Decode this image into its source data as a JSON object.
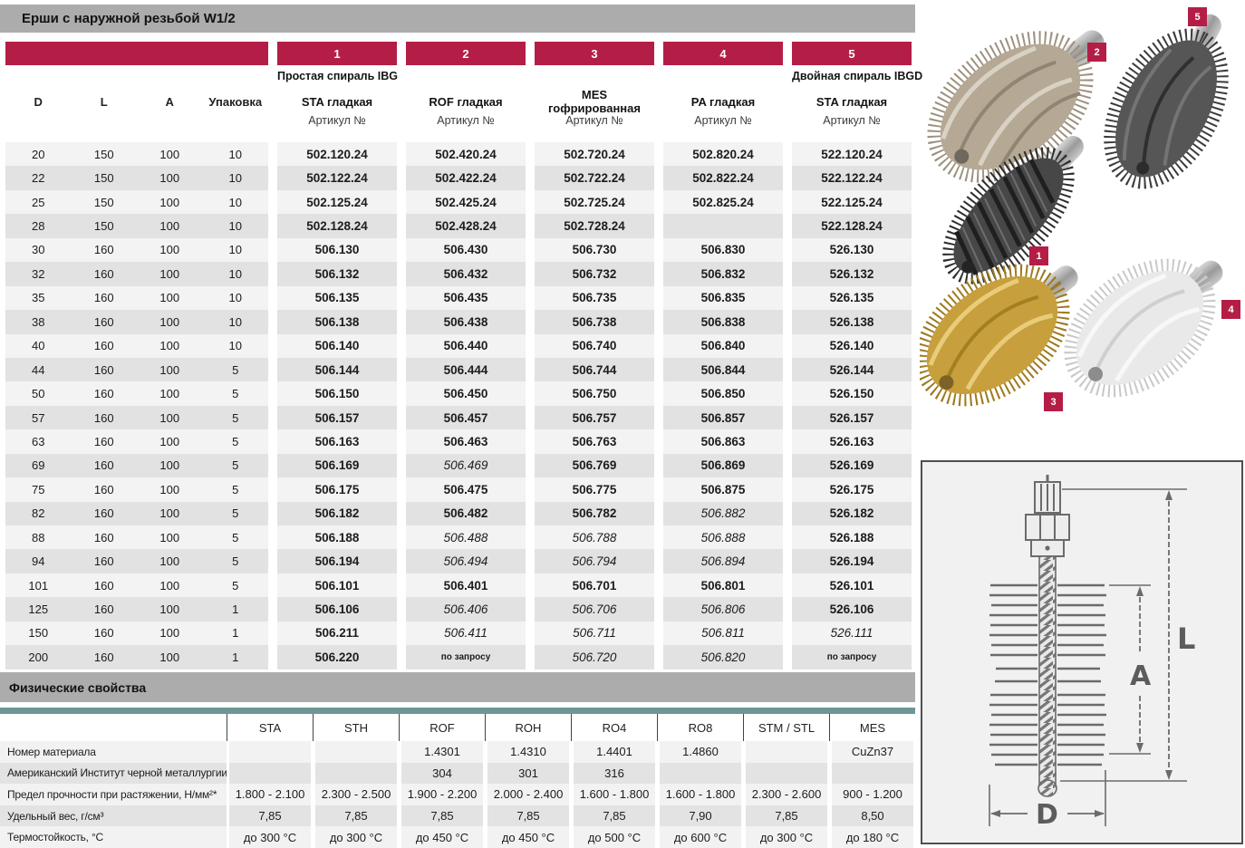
{
  "catalog": {
    "title": "Ерши с наружной резьбой  W1/2",
    "dim_headers": [
      "D",
      "L",
      "A",
      "Упаковка"
    ],
    "groups": [
      {
        "num": "1",
        "spiral": "Простая спираль IBG",
        "material": "STA гладкая",
        "article": "Артикул №"
      },
      {
        "num": "2",
        "spiral": "",
        "material": "ROF гладкая",
        "article": "Артикул №"
      },
      {
        "num": "3",
        "spiral": "",
        "material": "MES гофрированная",
        "article": "Артикул №"
      },
      {
        "num": "4",
        "spiral": "",
        "material": "PA гладкая",
        "article": "Артикул №"
      },
      {
        "num": "5",
        "spiral": "Двойная спираль IBGD",
        "material": "STA гладкая",
        "article": "Артикул №"
      }
    ],
    "rows": [
      {
        "d": "20",
        "l": "150",
        "a": "100",
        "pack": "10",
        "articles": [
          {
            "t": "502.120.24",
            "s": "b"
          },
          {
            "t": "502.420.24",
            "s": "b"
          },
          {
            "t": "502.720.24",
            "s": "b"
          },
          {
            "t": "502.820.24",
            "s": "b"
          },
          {
            "t": "522.120.24",
            "s": "b"
          }
        ]
      },
      {
        "d": "22",
        "l": "150",
        "a": "100",
        "pack": "10",
        "articles": [
          {
            "t": "502.122.24",
            "s": "b"
          },
          {
            "t": "502.422.24",
            "s": "b"
          },
          {
            "t": "502.722.24",
            "s": "b"
          },
          {
            "t": "502.822.24",
            "s": "b"
          },
          {
            "t": "522.122.24",
            "s": "b"
          }
        ]
      },
      {
        "d": "25",
        "l": "150",
        "a": "100",
        "pack": "10",
        "articles": [
          {
            "t": "502.125.24",
            "s": "b"
          },
          {
            "t": "502.425.24",
            "s": "b"
          },
          {
            "t": "502.725.24",
            "s": "b"
          },
          {
            "t": "502.825.24",
            "s": "b"
          },
          {
            "t": "522.125.24",
            "s": "b"
          }
        ]
      },
      {
        "d": "28",
        "l": "150",
        "a": "100",
        "pack": "10",
        "articles": [
          {
            "t": "502.128.24",
            "s": "b"
          },
          {
            "t": "502.428.24",
            "s": "b"
          },
          {
            "t": "502.728.24",
            "s": "b"
          },
          {
            "t": "",
            "s": "none"
          },
          {
            "t": "522.128.24",
            "s": "b"
          }
        ]
      },
      {
        "d": "30",
        "l": "160",
        "a": "100",
        "pack": "10",
        "articles": [
          {
            "t": "506.130",
            "s": "b"
          },
          {
            "t": "506.430",
            "s": "b"
          },
          {
            "t": "506.730",
            "s": "b"
          },
          {
            "t": "506.830",
            "s": "b"
          },
          {
            "t": "526.130",
            "s": "b"
          }
        ]
      },
      {
        "d": "32",
        "l": "160",
        "a": "100",
        "pack": "10",
        "articles": [
          {
            "t": "506.132",
            "s": "b"
          },
          {
            "t": "506.432",
            "s": "b"
          },
          {
            "t": "506.732",
            "s": "b"
          },
          {
            "t": "506.832",
            "s": "b"
          },
          {
            "t": "526.132",
            "s": "b"
          }
        ]
      },
      {
        "d": "35",
        "l": "160",
        "a": "100",
        "pack": "10",
        "articles": [
          {
            "t": "506.135",
            "s": "b"
          },
          {
            "t": "506.435",
            "s": "b"
          },
          {
            "t": "506.735",
            "s": "b"
          },
          {
            "t": "506.835",
            "s": "b"
          },
          {
            "t": "526.135",
            "s": "b"
          }
        ]
      },
      {
        "d": "38",
        "l": "160",
        "a": "100",
        "pack": "10",
        "articles": [
          {
            "t": "506.138",
            "s": "b"
          },
          {
            "t": "506.438",
            "s": "b"
          },
          {
            "t": "506.738",
            "s": "b"
          },
          {
            "t": "506.838",
            "s": "b"
          },
          {
            "t": "526.138",
            "s": "b"
          }
        ]
      },
      {
        "d": "40",
        "l": "160",
        "a": "100",
        "pack": "10",
        "articles": [
          {
            "t": "506.140",
            "s": "b"
          },
          {
            "t": "506.440",
            "s": "b"
          },
          {
            "t": "506.740",
            "s": "b"
          },
          {
            "t": "506.840",
            "s": "b"
          },
          {
            "t": "526.140",
            "s": "b"
          }
        ]
      },
      {
        "d": "44",
        "l": "160",
        "a": "100",
        "pack": "5",
        "articles": [
          {
            "t": "506.144",
            "s": "b"
          },
          {
            "t": "506.444",
            "s": "b"
          },
          {
            "t": "506.744",
            "s": "b"
          },
          {
            "t": "506.844",
            "s": "b"
          },
          {
            "t": "526.144",
            "s": "b"
          }
        ]
      },
      {
        "d": "50",
        "l": "160",
        "a": "100",
        "pack": "5",
        "articles": [
          {
            "t": "506.150",
            "s": "b"
          },
          {
            "t": "506.450",
            "s": "b"
          },
          {
            "t": "506.750",
            "s": "b"
          },
          {
            "t": "506.850",
            "s": "b"
          },
          {
            "t": "526.150",
            "s": "b"
          }
        ]
      },
      {
        "d": "57",
        "l": "160",
        "a": "100",
        "pack": "5",
        "articles": [
          {
            "t": "506.157",
            "s": "b"
          },
          {
            "t": "506.457",
            "s": "b"
          },
          {
            "t": "506.757",
            "s": "b"
          },
          {
            "t": "506.857",
            "s": "b"
          },
          {
            "t": "526.157",
            "s": "b"
          }
        ]
      },
      {
        "d": "63",
        "l": "160",
        "a": "100",
        "pack": "5",
        "articles": [
          {
            "t": "506.163",
            "s": "b"
          },
          {
            "t": "506.463",
            "s": "b"
          },
          {
            "t": "506.763",
            "s": "b"
          },
          {
            "t": "506.863",
            "s": "b"
          },
          {
            "t": "526.163",
            "s": "b"
          }
        ]
      },
      {
        "d": "69",
        "l": "160",
        "a": "100",
        "pack": "5",
        "articles": [
          {
            "t": "506.169",
            "s": "b"
          },
          {
            "t": "506.469",
            "s": "i"
          },
          {
            "t": "506.769",
            "s": "b"
          },
          {
            "t": "506.869",
            "s": "b"
          },
          {
            "t": "526.169",
            "s": "b"
          }
        ]
      },
      {
        "d": "75",
        "l": "160",
        "a": "100",
        "pack": "5",
        "articles": [
          {
            "t": "506.175",
            "s": "b"
          },
          {
            "t": "506.475",
            "s": "b"
          },
          {
            "t": "506.775",
            "s": "b"
          },
          {
            "t": "506.875",
            "s": "b"
          },
          {
            "t": "526.175",
            "s": "b"
          }
        ]
      },
      {
        "d": "82",
        "l": "160",
        "a": "100",
        "pack": "5",
        "articles": [
          {
            "t": "506.182",
            "s": "b"
          },
          {
            "t": "506.482",
            "s": "b"
          },
          {
            "t": "506.782",
            "s": "b"
          },
          {
            "t": "506.882",
            "s": "i"
          },
          {
            "t": "526.182",
            "s": "b"
          }
        ]
      },
      {
        "d": "88",
        "l": "160",
        "a": "100",
        "pack": "5",
        "articles": [
          {
            "t": "506.188",
            "s": "b"
          },
          {
            "t": "506.488",
            "s": "i"
          },
          {
            "t": "506.788",
            "s": "i"
          },
          {
            "t": "506.888",
            "s": "i"
          },
          {
            "t": "526.188",
            "s": "b"
          }
        ]
      },
      {
        "d": "94",
        "l": "160",
        "a": "100",
        "pack": "5",
        "articles": [
          {
            "t": "506.194",
            "s": "b"
          },
          {
            "t": "506.494",
            "s": "i"
          },
          {
            "t": "506.794",
            "s": "i"
          },
          {
            "t": "506.894",
            "s": "i"
          },
          {
            "t": "526.194",
            "s": "b"
          }
        ]
      },
      {
        "d": "101",
        "l": "160",
        "a": "100",
        "pack": "5",
        "articles": [
          {
            "t": "506.101",
            "s": "b"
          },
          {
            "t": "506.401",
            "s": "b"
          },
          {
            "t": "506.701",
            "s": "b"
          },
          {
            "t": "506.801",
            "s": "b"
          },
          {
            "t": "526.101",
            "s": "b"
          }
        ]
      },
      {
        "d": "125",
        "l": "160",
        "a": "100",
        "pack": "1",
        "articles": [
          {
            "t": "506.106",
            "s": "b"
          },
          {
            "t": "506.406",
            "s": "i"
          },
          {
            "t": "506.706",
            "s": "i"
          },
          {
            "t": "506.806",
            "s": "i"
          },
          {
            "t": "526.106",
            "s": "b"
          }
        ]
      },
      {
        "d": "150",
        "l": "160",
        "a": "100",
        "pack": "1",
        "articles": [
          {
            "t": "506.211",
            "s": "b"
          },
          {
            "t": "506.411",
            "s": "i"
          },
          {
            "t": "506.711",
            "s": "i"
          },
          {
            "t": "506.811",
            "s": "i"
          },
          {
            "t": "526.111",
            "s": "i"
          }
        ]
      },
      {
        "d": "200",
        "l": "160",
        "a": "100",
        "pack": "1",
        "articles": [
          {
            "t": "506.220",
            "s": "b"
          },
          {
            "t": "по запросу",
            "s": "r"
          },
          {
            "t": "506.720",
            "s": "i"
          },
          {
            "t": "506.820",
            "s": "i"
          },
          {
            "t": "по запросу",
            "s": "r"
          }
        ]
      }
    ]
  },
  "physical": {
    "title": "Физические свойства",
    "col_headers": [
      "STA",
      "STH",
      "ROF",
      "ROH",
      "RO4",
      "RO8",
      "STM / STL",
      "MES"
    ],
    "rows": [
      {
        "label": "Номер материала",
        "values": [
          "",
          "",
          "1.4301",
          "1.4310",
          "1.4401",
          "1.4860",
          "",
          "CuZn37"
        ]
      },
      {
        "label": "Американский Институт черной металлургии (AISI)",
        "values": [
          "",
          "",
          "304",
          "301",
          "316",
          "",
          "",
          ""
        ]
      },
      {
        "label": "Предел прочности при растяжении,  Н/мм²*",
        "values": [
          "1.800 - 2.100",
          "2.300 - 2.500",
          "1.900 - 2.200",
          "2.000 - 2.400",
          "1.600 - 1.800",
          "1.600 - 1.800",
          "2.300 - 2.600",
          "900 - 1.200"
        ]
      },
      {
        "label": "Удельный вес, г/см³",
        "values": [
          "7,85",
          "7,85",
          "7,85",
          "7,85",
          "7,85",
          "7,90",
          "7,85",
          "8,50"
        ]
      },
      {
        "label": "Термостойкость, °С",
        "values": [
          "до  300 °C",
          "до  300 °C",
          "до  450 °C",
          "до  450 °C",
          "до  500 °C",
          "до  600 °C",
          "до  300 °C",
          "до  180 °C"
        ]
      }
    ]
  },
  "product_tags": {
    "t1": "1",
    "t2": "2",
    "t3": "3",
    "t4": "4",
    "t5": "5"
  },
  "diagram": {
    "labels": {
      "length": "L",
      "brush_length": "A",
      "diameter": "D"
    }
  },
  "colors": {
    "accent": "#b41e46",
    "bar_gray": "#acacac",
    "teal": "#6f9596",
    "stripe_light": "#f3f3f3",
    "stripe_dark": "#e2e2e2"
  }
}
